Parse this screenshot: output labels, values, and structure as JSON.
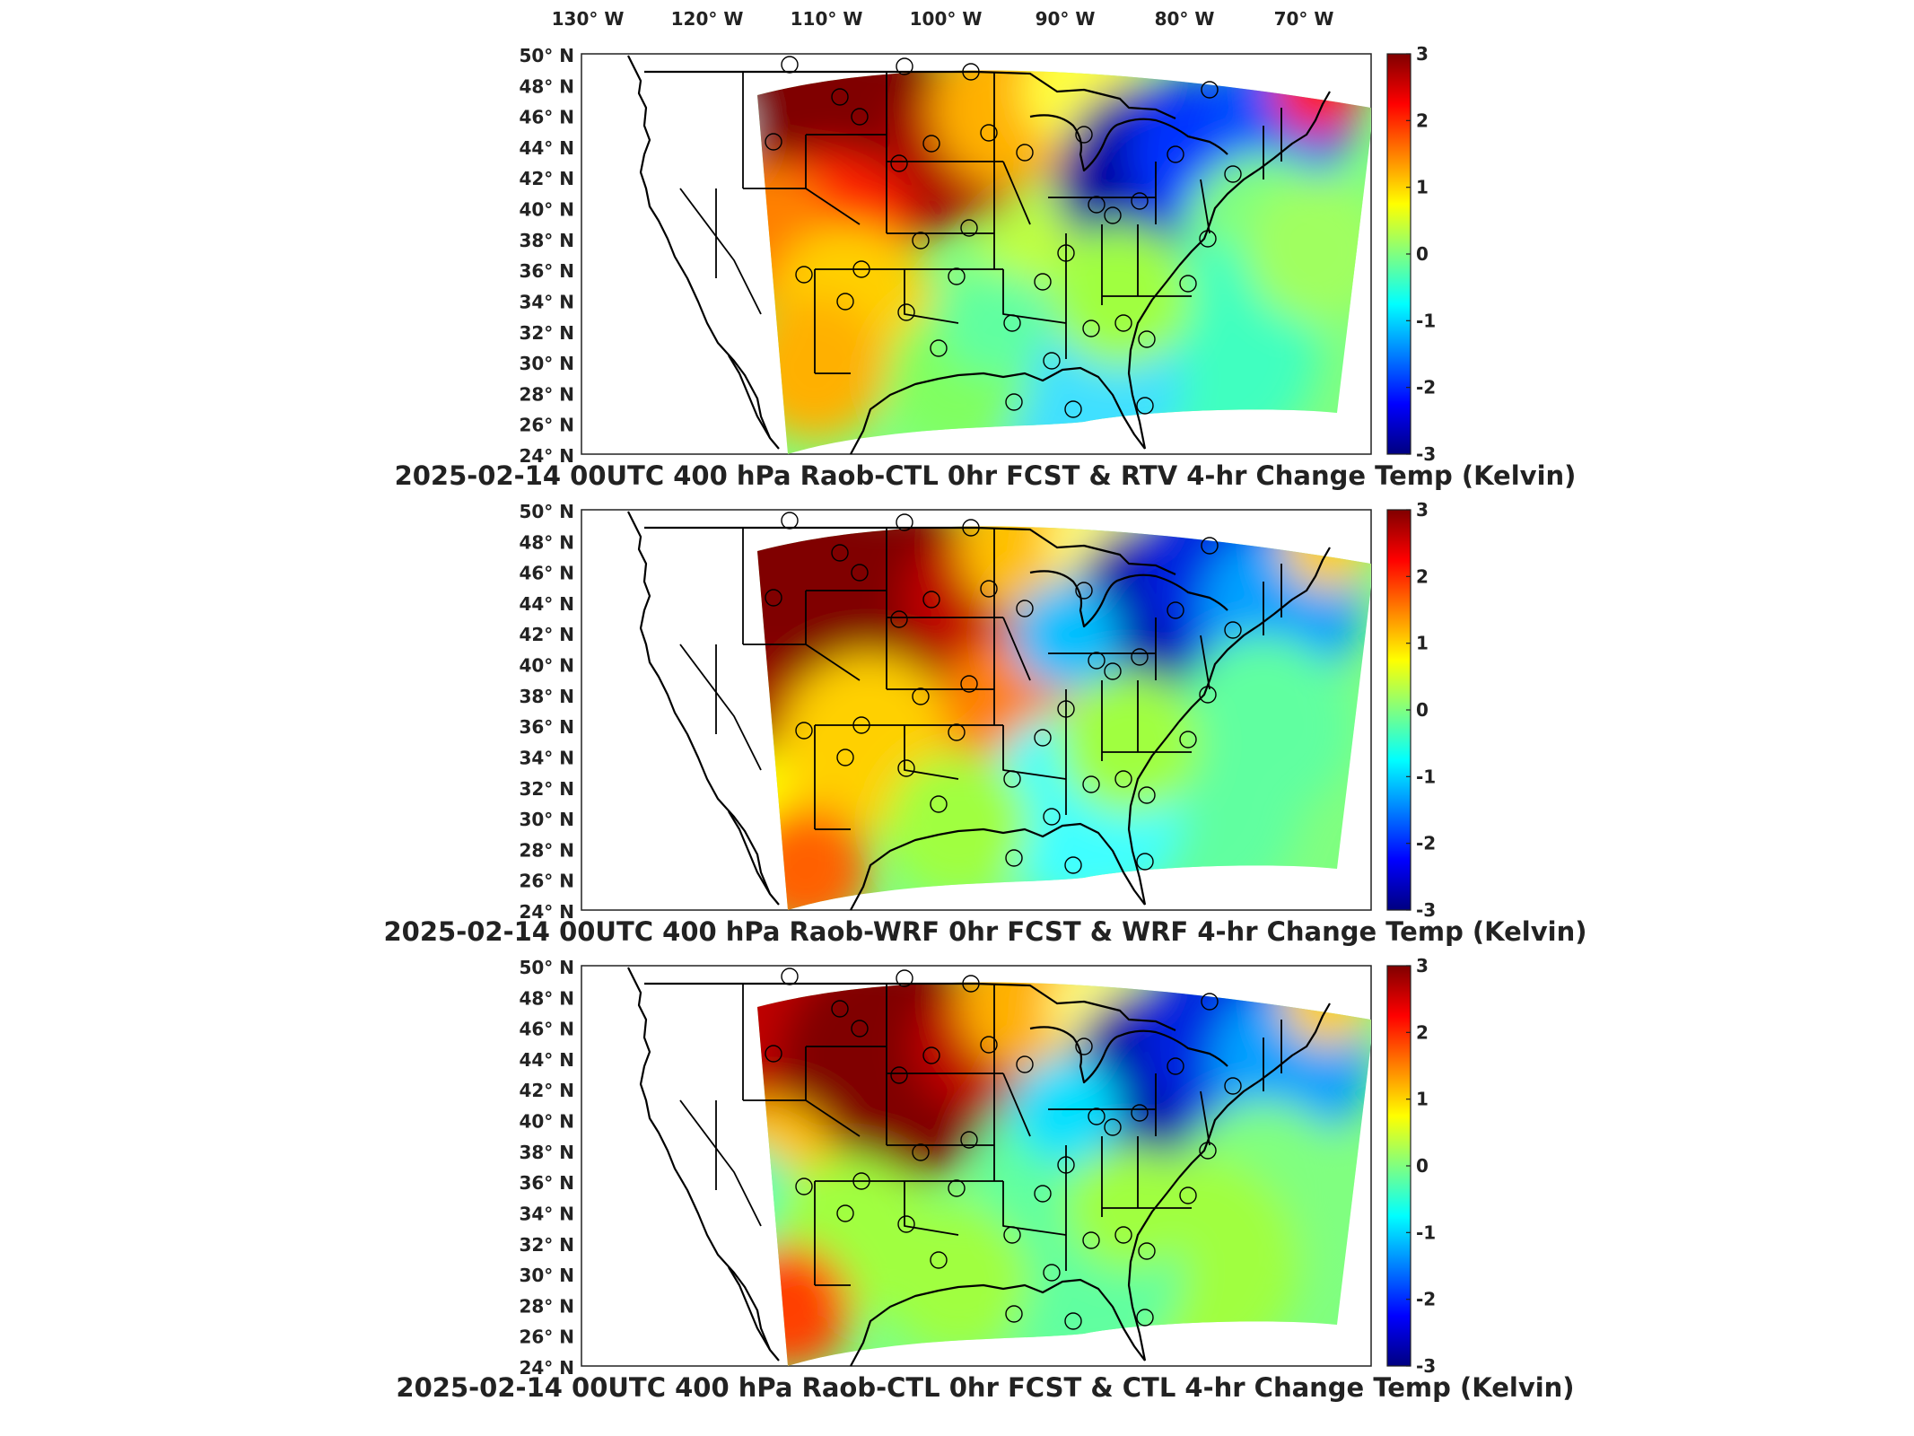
{
  "longitude_labels": [
    "130° W",
    "120° W",
    "110° W",
    "100° W",
    "90° W",
    "80° W",
    "70° W"
  ],
  "latitude_labels": [
    "50° N",
    "48° N",
    "46° N",
    "44° N",
    "42° N",
    "40° N",
    "38° N",
    "36° N",
    "34° N",
    "32° N",
    "30° N",
    "28° N",
    "26° N",
    "24° N"
  ],
  "colorbar": {
    "colormap": "jet",
    "min": -3,
    "max": 3,
    "ticks": [
      "3",
      "2",
      "1",
      "0",
      "-1",
      "-2",
      "-3"
    ],
    "colors": [
      "#800000",
      "#ff0000",
      "#ff8000",
      "#ffff00",
      "#80ff80",
      "#00ffff",
      "#0080ff",
      "#0000ff",
      "#000080"
    ]
  },
  "panels": [
    {
      "title": "2025-02-14 00UTC 400 hPa Raob-CTL 0hr FCST & RTV 4-hr Change Temp (Kelvin)",
      "pattern": "rtv"
    },
    {
      "title": "2025-02-14 00UTC 400 hPa Raob-WRF 0hr FCST & WRF 4-hr Change Temp (Kelvin)",
      "pattern": "wrf"
    },
    {
      "title": "2025-02-14 00UTC 400 hPa Raob-CTL 0hr FCST & CTL 4-hr Change Temp (Kelvin)",
      "pattern": "ctl"
    }
  ],
  "map_elements": [
    "coastline",
    "state-borders",
    "raob-station-markers",
    "model-domain-field"
  ]
}
